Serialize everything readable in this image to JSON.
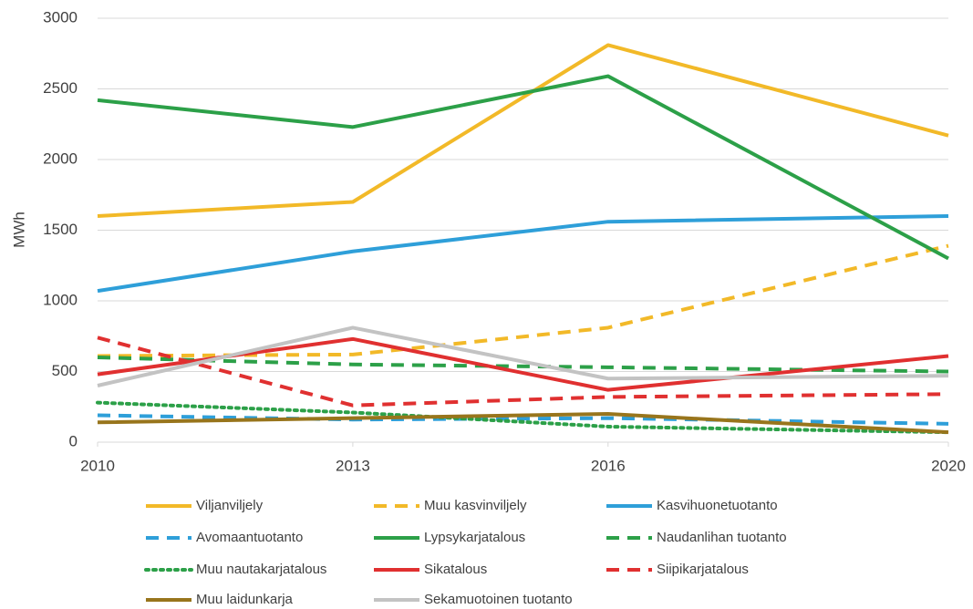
{
  "chart_data": {
    "type": "line",
    "ylabel": "MWh",
    "x": [
      2010,
      2013,
      2016,
      2020
    ],
    "xlim": [
      2010,
      2020
    ],
    "xticks": [
      2010,
      2013,
      2016,
      2020
    ],
    "ylim": [
      0,
      3000
    ],
    "yticks": [
      0,
      500,
      1000,
      1500,
      2000,
      2500,
      3000
    ],
    "grid": true,
    "legend": "bottom",
    "series": [
      {
        "name": "Viljanviljely",
        "color": "#f2b928",
        "dash": "solid",
        "values": [
          1600,
          1700,
          2810,
          2170
        ]
      },
      {
        "name": "Muu kasvinviljely",
        "color": "#f2b928",
        "dash": "dashed",
        "values": [
          610,
          620,
          810,
          1390
        ]
      },
      {
        "name": "Kasvihuonetuotanto",
        "color": "#2e9fd9",
        "dash": "solid",
        "values": [
          1070,
          1350,
          1560,
          1600
        ]
      },
      {
        "name": "Avomaantuotanto",
        "color": "#2e9fd9",
        "dash": "dashed",
        "values": [
          190,
          160,
          170,
          130
        ]
      },
      {
        "name": "Lypsykarjatalous",
        "color": "#2ca048",
        "dash": "solid",
        "values": [
          2420,
          2230,
          2590,
          1300
        ]
      },
      {
        "name": "Naudanlihan tuotanto",
        "color": "#2ca048",
        "dash": "dashed",
        "values": [
          600,
          550,
          530,
          500
        ]
      },
      {
        "name": "Muu nautakarjatalous",
        "color": "#2ca048",
        "dash": "dotted",
        "values": [
          280,
          210,
          110,
          70
        ]
      },
      {
        "name": "Sikatalous",
        "color": "#e03030",
        "dash": "solid",
        "values": [
          480,
          730,
          370,
          610
        ]
      },
      {
        "name": "Siipikarjatalous",
        "color": "#e03030",
        "dash": "dashed",
        "values": [
          740,
          260,
          320,
          340
        ]
      },
      {
        "name": "Muu laidunkarja",
        "color": "#98751c",
        "dash": "solid",
        "values": [
          140,
          170,
          200,
          70
        ]
      },
      {
        "name": "Sekamuotoinen tuotanto",
        "color": "#c3c3c3",
        "dash": "solid",
        "values": [
          400,
          810,
          450,
          470
        ]
      }
    ]
  }
}
